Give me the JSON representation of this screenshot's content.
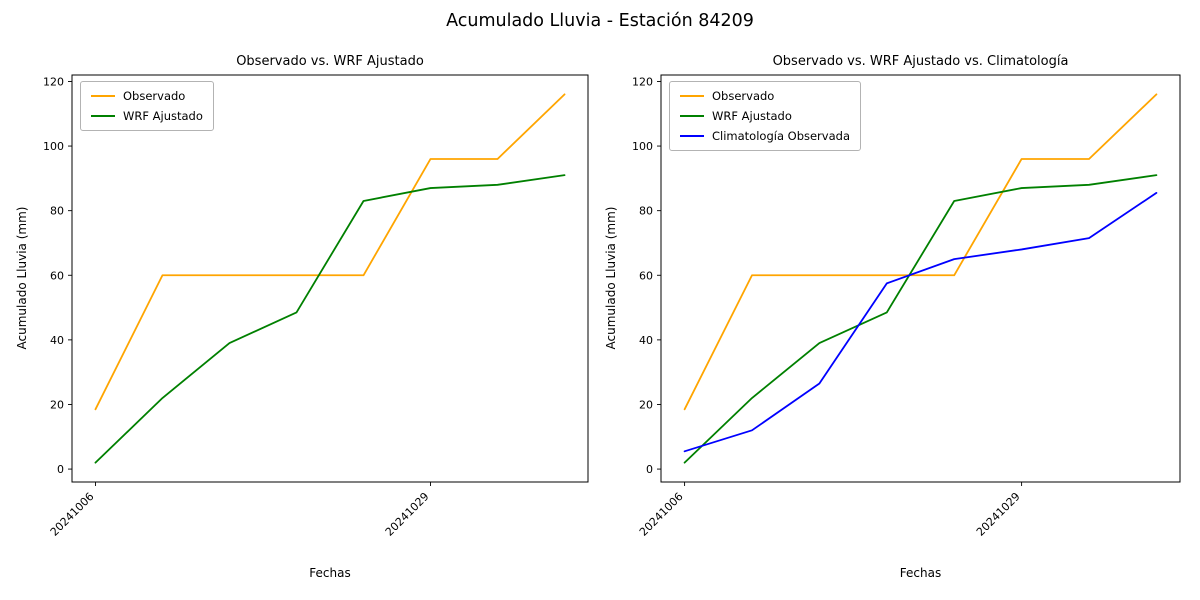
{
  "figure": {
    "title": "Acumulado Lluvia - Estación 84209",
    "background_color": "#ffffff"
  },
  "chart_data": [
    {
      "type": "line",
      "title": "Observado vs. WRF Ajustado",
      "xlabel": "Fechas",
      "ylabel": "Acumulado Lluvia (mm)",
      "ylim": [
        -4,
        122
      ],
      "yticks": [
        0,
        20,
        40,
        60,
        80,
        100,
        120
      ],
      "x": [
        0,
        1,
        2,
        3,
        4,
        5,
        6,
        7
      ],
      "xticks": [
        {
          "pos": 0,
          "label": "20241006"
        },
        {
          "pos": 5,
          "label": "20241029"
        }
      ],
      "grid": false,
      "legend_position": "upper-left",
      "series": [
        {
          "name": "Observado",
          "color": "#ffa500",
          "values": [
            18.5,
            60,
            60,
            60,
            60,
            96,
            96,
            116
          ]
        },
        {
          "name": "WRF Ajustado",
          "color": "#008000",
          "values": [
            2,
            22,
            39,
            48.5,
            83,
            87,
            88,
            91
          ]
        }
      ]
    },
    {
      "type": "line",
      "title": "Observado vs. WRF Ajustado vs. Climatología",
      "xlabel": "Fechas",
      "ylabel": "Acumulado Lluvia (mm)",
      "ylim": [
        -4,
        122
      ],
      "yticks": [
        0,
        20,
        40,
        60,
        80,
        100,
        120
      ],
      "x": [
        0,
        1,
        2,
        3,
        4,
        5,
        6,
        7
      ],
      "xticks": [
        {
          "pos": 0,
          "label": "20241006"
        },
        {
          "pos": 5,
          "label": "20241029"
        }
      ],
      "grid": false,
      "legend_position": "upper-left",
      "series": [
        {
          "name": "Observado",
          "color": "#ffa500",
          "values": [
            18.5,
            60,
            60,
            60,
            60,
            96,
            96,
            116
          ]
        },
        {
          "name": "WRF Ajustado",
          "color": "#008000",
          "values": [
            2,
            22,
            39,
            48.5,
            83,
            87,
            88,
            91
          ]
        },
        {
          "name": "Climatología Observada",
          "color": "#0000ff",
          "values": [
            5.5,
            12,
            26.5,
            57.5,
            65,
            68,
            71.5,
            85.5
          ]
        }
      ]
    }
  ]
}
